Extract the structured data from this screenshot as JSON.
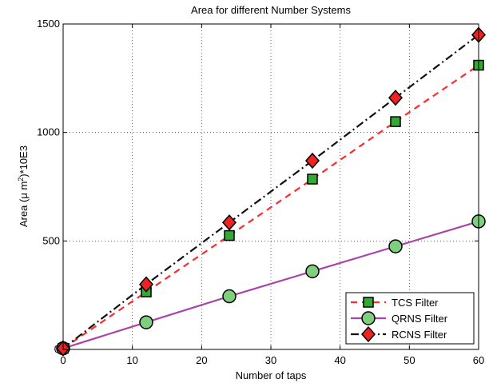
{
  "chart_data": {
    "type": "line",
    "title": "Area for different Number Systems",
    "xlabel": "Number of taps",
    "ylabel_prefix": "Area (μ m",
    "ylabel_sup": "2",
    "ylabel_suffix": ")*10E3",
    "xlim": [
      0,
      60
    ],
    "ylim": [
      0,
      1500
    ],
    "xticks": [
      0,
      10,
      20,
      30,
      40,
      50,
      60
    ],
    "yticks": [
      0,
      500,
      1000,
      1500
    ],
    "grid": true,
    "legend_position": "bottom-right",
    "x": [
      0,
      12,
      24,
      36,
      48,
      60
    ],
    "series": [
      {
        "name": "TCS Filter",
        "values": [
          5,
          265,
          525,
          785,
          1050,
          1310
        ],
        "line_color": "#ff2a2a",
        "marker": "square",
        "marker_fill": "#33aa33",
        "dash": "8,6"
      },
      {
        "name": "QRNS Filter",
        "values": [
          5,
          125,
          245,
          360,
          475,
          590
        ],
        "line_color": "#aa44aa",
        "marker": "circle",
        "marker_fill": "#7fcf7f",
        "dash": ""
      },
      {
        "name": "RCNS Filter",
        "values": [
          5,
          300,
          585,
          870,
          1160,
          1450
        ],
        "line_color": "#111111",
        "marker": "diamond",
        "marker_fill": "#ee2222",
        "dash": "10,4,2,4"
      }
    ]
  }
}
